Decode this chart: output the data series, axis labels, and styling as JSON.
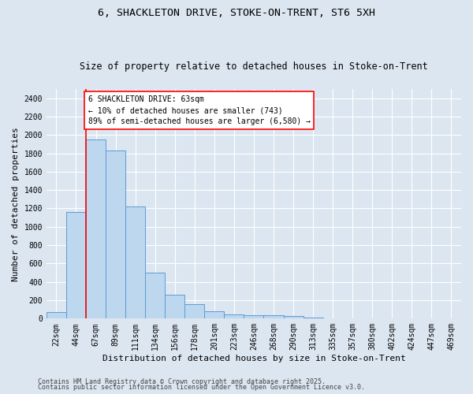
{
  "title_line1": "6, SHACKLETON DRIVE, STOKE-ON-TRENT, ST6 5XH",
  "title_line2": "Size of property relative to detached houses in Stoke-on-Trent",
  "xlabel": "Distribution of detached houses by size in Stoke-on-Trent",
  "ylabel": "Number of detached properties",
  "categories": [
    "22sqm",
    "44sqm",
    "67sqm",
    "89sqm",
    "111sqm",
    "134sqm",
    "156sqm",
    "178sqm",
    "201sqm",
    "223sqm",
    "246sqm",
    "268sqm",
    "290sqm",
    "313sqm",
    "335sqm",
    "357sqm",
    "380sqm",
    "402sqm",
    "424sqm",
    "447sqm",
    "469sqm"
  ],
  "values": [
    70,
    1160,
    1950,
    1830,
    1220,
    500,
    260,
    160,
    80,
    50,
    40,
    35,
    30,
    10,
    5,
    3,
    2,
    1,
    1,
    1,
    0
  ],
  "bar_color": "#bdd7ee",
  "bar_edge_color": "#5b9bd5",
  "background_color": "#dce6f1",
  "plot_bg_color": "#dce6f1",
  "grid_color": "#ffffff",
  "annotation_text": "6 SHACKLETON DRIVE: 63sqm\n← 10% of detached houses are smaller (743)\n89% of semi-detached houses are larger (6,580) →",
  "annotation_box_color": "#ffffff",
  "annotation_box_edge_color": "#ff0000",
  "property_line_color": "#ff0000",
  "ylim": [
    0,
    2500
  ],
  "yticks": [
    0,
    200,
    400,
    600,
    800,
    1000,
    1200,
    1400,
    1600,
    1800,
    2000,
    2200,
    2400
  ],
  "footer_line1": "Contains HM Land Registry data © Crown copyright and database right 2025.",
  "footer_line2": "Contains public sector information licensed under the Open Government Licence v3.0.",
  "title_fontsize": 9.5,
  "subtitle_fontsize": 8.5,
  "axis_label_fontsize": 8,
  "tick_fontsize": 7,
  "annotation_fontsize": 7,
  "footer_fontsize": 6
}
